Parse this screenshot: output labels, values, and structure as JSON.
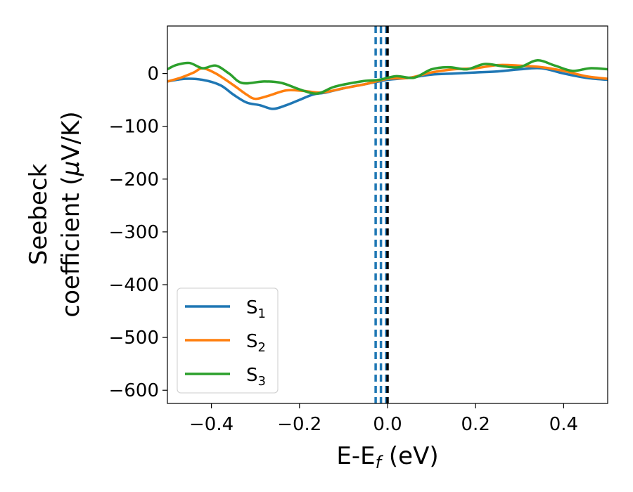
{
  "chart_data": {
    "type": "line",
    "title": "",
    "xlabel": "E-E",
    "xlabel_sub": "f",
    "xlabel_unit": " (eV)",
    "ylabel_line1": "Seebeck",
    "ylabel_line2_prefix": "coefficient  (",
    "ylabel_mu": "μ",
    "ylabel_line2_suffix": "V/K)",
    "xlim": [
      -0.5,
      0.5
    ],
    "ylim": [
      -625,
      90
    ],
    "grid": false,
    "legend_position": "lower-left",
    "x_ticks": [
      -0.4,
      -0.2,
      0.0,
      0.2,
      0.4
    ],
    "x_tick_labels": [
      "−0.4",
      "−0.2",
      "0.0",
      "0.2",
      "0.4"
    ],
    "y_ticks": [
      0,
      -100,
      -200,
      -300,
      -400,
      -500,
      -600
    ],
    "y_tick_labels": [
      "0",
      "−100",
      "−200",
      "−300",
      "−400",
      "−500",
      "−600"
    ],
    "vlines": [
      {
        "x": -0.027,
        "style": "dashed",
        "color": "#1f77b4"
      },
      {
        "x": -0.015,
        "style": "dashed",
        "color": "#1f77b4"
      },
      {
        "x": -0.003,
        "style": "dashed",
        "color": "#1f77b4"
      },
      {
        "x": 0.0,
        "style": "dashed",
        "color": "#000000"
      }
    ],
    "series": [
      {
        "name": "S",
        "sub": "1",
        "color": "#1f77b4",
        "x": [
          -0.5,
          -0.46,
          -0.42,
          -0.38,
          -0.35,
          -0.32,
          -0.29,
          -0.26,
          -0.23,
          -0.2,
          -0.17,
          -0.14,
          -0.1,
          -0.05,
          0.0,
          0.05,
          0.1,
          0.15,
          0.2,
          0.25,
          0.3,
          0.35,
          0.4,
          0.45,
          0.5
        ],
        "y": [
          -15,
          -10,
          -12,
          -22,
          -40,
          -55,
          -60,
          -67,
          -60,
          -50,
          -40,
          -36,
          -28,
          -20,
          -12,
          -8,
          -2,
          0,
          2,
          4,
          8,
          10,
          0,
          -8,
          -12
        ]
      },
      {
        "name": "S",
        "sub": "2",
        "color": "#ff7f0e",
        "x": [
          -0.5,
          -0.47,
          -0.44,
          -0.42,
          -0.39,
          -0.35,
          -0.32,
          -0.3,
          -0.27,
          -0.23,
          -0.19,
          -0.15,
          -0.1,
          -0.05,
          0.0,
          0.05,
          0.1,
          0.15,
          0.2,
          0.25,
          0.3,
          0.35,
          0.4,
          0.45,
          0.5
        ],
        "y": [
          -15,
          -8,
          2,
          10,
          0,
          -22,
          -40,
          -48,
          -42,
          -32,
          -33,
          -36,
          -28,
          -20,
          -10,
          -8,
          2,
          8,
          10,
          16,
          15,
          12,
          5,
          -5,
          -10
        ]
      },
      {
        "name": "S",
        "sub": "3",
        "color": "#2ca02c",
        "x": [
          -0.5,
          -0.48,
          -0.45,
          -0.42,
          -0.39,
          -0.36,
          -0.33,
          -0.28,
          -0.24,
          -0.2,
          -0.16,
          -0.12,
          -0.06,
          -0.02,
          0.02,
          0.06,
          0.1,
          0.14,
          0.18,
          0.22,
          0.26,
          0.3,
          0.34,
          0.38,
          0.42,
          0.46,
          0.5
        ],
        "y": [
          8,
          16,
          20,
          10,
          15,
          0,
          -18,
          -15,
          -18,
          -30,
          -38,
          -25,
          -15,
          -12,
          -5,
          -8,
          8,
          12,
          8,
          18,
          14,
          12,
          25,
          15,
          5,
          10,
          8
        ]
      }
    ]
  }
}
